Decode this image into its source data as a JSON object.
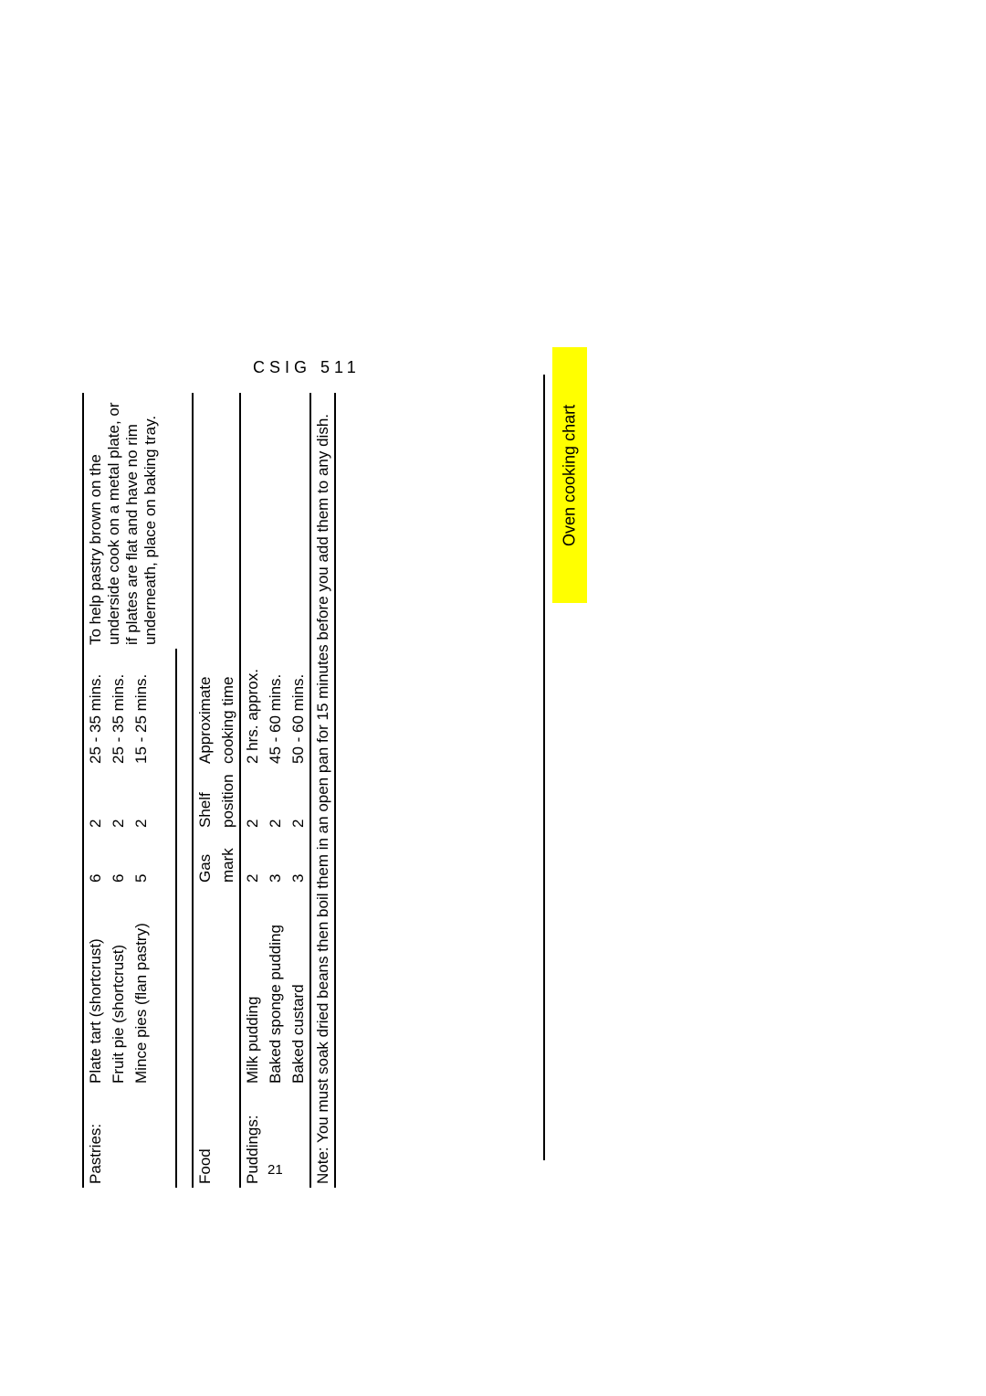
{
  "header": "CSIG 511",
  "page_number": "21",
  "side_tab": "Oven cooking chart",
  "pastries": {
    "category": "Pastries:",
    "note": "To help pastry brown on the underside cook on a metal plate, or if plates are flat and have no rim underneath, place on baking tray.",
    "items": [
      {
        "name": "Plate tart (shortcrust)",
        "gas": "6",
        "shelf": "2",
        "time": "25 - 35 mins."
      },
      {
        "name": "Fruit pie (shortcrust)",
        "gas": "6",
        "shelf": "2",
        "time": "25 - 35 mins."
      },
      {
        "name": "Mince pies (flan pastry)",
        "gas": "5",
        "shelf": "2",
        "time": "15 - 25 mins."
      }
    ]
  },
  "puddings_header": {
    "food": "Food",
    "gas": "Gas mark",
    "shelf": "Shelf position",
    "time": "Approximate cooking time"
  },
  "puddings": {
    "category": "Puddings:",
    "items": [
      {
        "name": "Milk pudding",
        "gas": "2",
        "shelf": "2",
        "time": "2 hrs. approx."
      },
      {
        "name": "Baked sponge pudding",
        "gas": "3",
        "shelf": "2",
        "time": "45 - 60 mins."
      },
      {
        "name": "Baked custard",
        "gas": "3",
        "shelf": "2",
        "time": "50 - 60 mins."
      }
    ]
  },
  "footer_note": "Note: You must soak dried beans then boil them in an open pan for 15 minutes before you add them to any dish."
}
